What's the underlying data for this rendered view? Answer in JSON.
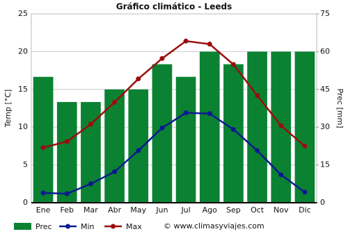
{
  "chart_data": {
    "type": "bar-line",
    "title": "Gráfico climático - Leeds",
    "y_label": "Temp [°C]",
    "y2_label": "Prec [mm]",
    "categories": [
      "Ene",
      "Feb",
      "Mar",
      "Abr",
      "May",
      "Jun",
      "Jul",
      "Ago",
      "Sep",
      "Oct",
      "Nov",
      "Dic"
    ],
    "series": [
      {
        "name": "Prec",
        "type": "bar",
        "axis": "y2",
        "color": "#0a8232",
        "values": [
          50,
          40,
          40,
          45,
          45,
          55,
          50,
          60,
          55,
          60,
          60,
          60
        ]
      },
      {
        "name": "Min",
        "type": "line",
        "color": "#0b1a8f",
        "values": [
          1.3,
          1.2,
          2.5,
          4.1,
          6.9,
          9.9,
          11.9,
          11.8,
          9.7,
          6.9,
          3.7,
          1.4
        ]
      },
      {
        "name": "Max",
        "type": "line",
        "color": "#9b0d0d",
        "values": [
          7.3,
          8.1,
          10.4,
          13.3,
          16.4,
          19.1,
          21.4,
          21.0,
          18.3,
          14.2,
          10.2,
          7.5
        ]
      }
    ],
    "ylim": [
      0,
      25
    ],
    "yticks": [
      0,
      5,
      10,
      15,
      20,
      25
    ],
    "y2lim": [
      0,
      75
    ],
    "y2ticks": [
      0,
      15,
      30,
      45,
      60,
      75
    ],
    "grid": true,
    "legend": "bottom",
    "watermark": "© www.climasyviajes.com"
  }
}
